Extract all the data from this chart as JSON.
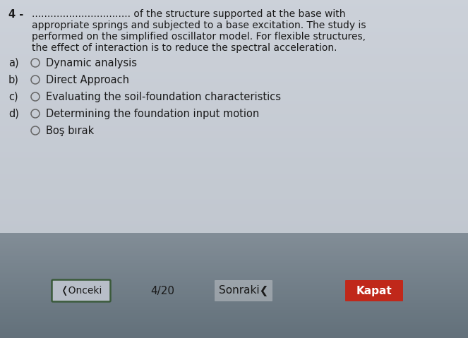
{
  "bg_color_top": "#c8cdd6",
  "bg_color_bottom": "#62707a",
  "content_panel_color": "#c5cad3",
  "question_number": "4 -",
  "question_dots": "................................",
  "question_text_line1": " of the structure supported at the base with",
  "question_text_line2": "appropriate springs and subjected to a base excitation. The study is",
  "question_text_line3": "performed on the simplified oscillator model. For flexible structures,",
  "question_text_line4": "the effect of interaction is to reduce the spectral acceleration.",
  "options": [
    {
      "label": "a)",
      "text": "Dynamic analysis"
    },
    {
      "label": "b)",
      "text": "Direct Approach"
    },
    {
      "label": "c)",
      "text": "Evaluating the soil-foundation characteristics"
    },
    {
      "label": "d)",
      "text": "Determining the foundation input motion"
    }
  ],
  "extra_option": "Boş bırak",
  "btn_prev_text": "❬Onceki",
  "page_text": "4/20",
  "btn_next_text": "Sonraki❮",
  "btn_close_text": "Kapat",
  "text_color": "#1a1a1a",
  "btn_prev_border": "#3a5a3a",
  "btn_close_bg": "#c0281a",
  "btn_close_text_color": "#ffffff",
  "font_size_question": 10,
  "font_size_options": 10.5,
  "font_size_btn": 10
}
